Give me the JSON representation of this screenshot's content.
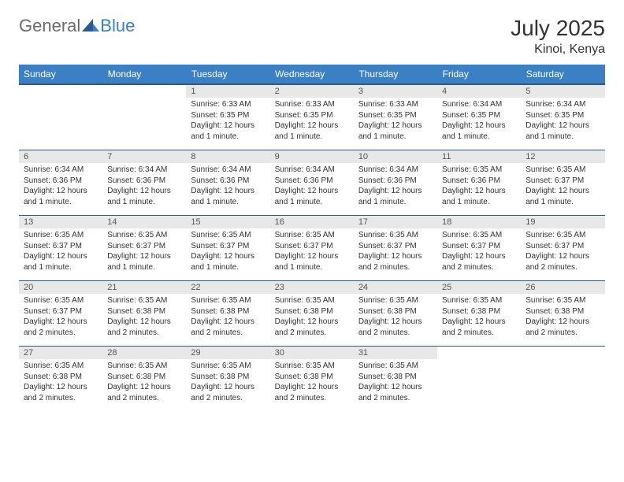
{
  "brand": {
    "part1": "General",
    "part2": "Blue"
  },
  "title": "July 2025",
  "location": "Kinoi, Kenya",
  "colors": {
    "header_bg": "#3b7fc4",
    "header_text": "#ffffff",
    "daynum_bg": "#e8e8e8",
    "border": "#2c5a8a",
    "logo_gray": "#6b6b6b",
    "logo_blue": "#3b7fc4"
  },
  "weekdays": [
    "Sunday",
    "Monday",
    "Tuesday",
    "Wednesday",
    "Thursday",
    "Friday",
    "Saturday"
  ],
  "weeks": [
    [
      {
        "empty": true
      },
      {
        "empty": true
      },
      {
        "num": "1",
        "sunrise": "Sunrise: 6:33 AM",
        "sunset": "Sunset: 6:35 PM",
        "daylight": "Daylight: 12 hours and 1 minute."
      },
      {
        "num": "2",
        "sunrise": "Sunrise: 6:33 AM",
        "sunset": "Sunset: 6:35 PM",
        "daylight": "Daylight: 12 hours and 1 minute."
      },
      {
        "num": "3",
        "sunrise": "Sunrise: 6:33 AM",
        "sunset": "Sunset: 6:35 PM",
        "daylight": "Daylight: 12 hours and 1 minute."
      },
      {
        "num": "4",
        "sunrise": "Sunrise: 6:34 AM",
        "sunset": "Sunset: 6:35 PM",
        "daylight": "Daylight: 12 hours and 1 minute."
      },
      {
        "num": "5",
        "sunrise": "Sunrise: 6:34 AM",
        "sunset": "Sunset: 6:35 PM",
        "daylight": "Daylight: 12 hours and 1 minute."
      }
    ],
    [
      {
        "num": "6",
        "sunrise": "Sunrise: 6:34 AM",
        "sunset": "Sunset: 6:36 PM",
        "daylight": "Daylight: 12 hours and 1 minute."
      },
      {
        "num": "7",
        "sunrise": "Sunrise: 6:34 AM",
        "sunset": "Sunset: 6:36 PM",
        "daylight": "Daylight: 12 hours and 1 minute."
      },
      {
        "num": "8",
        "sunrise": "Sunrise: 6:34 AM",
        "sunset": "Sunset: 6:36 PM",
        "daylight": "Daylight: 12 hours and 1 minute."
      },
      {
        "num": "9",
        "sunrise": "Sunrise: 6:34 AM",
        "sunset": "Sunset: 6:36 PM",
        "daylight": "Daylight: 12 hours and 1 minute."
      },
      {
        "num": "10",
        "sunrise": "Sunrise: 6:34 AM",
        "sunset": "Sunset: 6:36 PM",
        "daylight": "Daylight: 12 hours and 1 minute."
      },
      {
        "num": "11",
        "sunrise": "Sunrise: 6:35 AM",
        "sunset": "Sunset: 6:36 PM",
        "daylight": "Daylight: 12 hours and 1 minute."
      },
      {
        "num": "12",
        "sunrise": "Sunrise: 6:35 AM",
        "sunset": "Sunset: 6:37 PM",
        "daylight": "Daylight: 12 hours and 1 minute."
      }
    ],
    [
      {
        "num": "13",
        "sunrise": "Sunrise: 6:35 AM",
        "sunset": "Sunset: 6:37 PM",
        "daylight": "Daylight: 12 hours and 1 minute."
      },
      {
        "num": "14",
        "sunrise": "Sunrise: 6:35 AM",
        "sunset": "Sunset: 6:37 PM",
        "daylight": "Daylight: 12 hours and 1 minute."
      },
      {
        "num": "15",
        "sunrise": "Sunrise: 6:35 AM",
        "sunset": "Sunset: 6:37 PM",
        "daylight": "Daylight: 12 hours and 1 minute."
      },
      {
        "num": "16",
        "sunrise": "Sunrise: 6:35 AM",
        "sunset": "Sunset: 6:37 PM",
        "daylight": "Daylight: 12 hours and 1 minute."
      },
      {
        "num": "17",
        "sunrise": "Sunrise: 6:35 AM",
        "sunset": "Sunset: 6:37 PM",
        "daylight": "Daylight: 12 hours and 2 minutes."
      },
      {
        "num": "18",
        "sunrise": "Sunrise: 6:35 AM",
        "sunset": "Sunset: 6:37 PM",
        "daylight": "Daylight: 12 hours and 2 minutes."
      },
      {
        "num": "19",
        "sunrise": "Sunrise: 6:35 AM",
        "sunset": "Sunset: 6:37 PM",
        "daylight": "Daylight: 12 hours and 2 minutes."
      }
    ],
    [
      {
        "num": "20",
        "sunrise": "Sunrise: 6:35 AM",
        "sunset": "Sunset: 6:37 PM",
        "daylight": "Daylight: 12 hours and 2 minutes."
      },
      {
        "num": "21",
        "sunrise": "Sunrise: 6:35 AM",
        "sunset": "Sunset: 6:38 PM",
        "daylight": "Daylight: 12 hours and 2 minutes."
      },
      {
        "num": "22",
        "sunrise": "Sunrise: 6:35 AM",
        "sunset": "Sunset: 6:38 PM",
        "daylight": "Daylight: 12 hours and 2 minutes."
      },
      {
        "num": "23",
        "sunrise": "Sunrise: 6:35 AM",
        "sunset": "Sunset: 6:38 PM",
        "daylight": "Daylight: 12 hours and 2 minutes."
      },
      {
        "num": "24",
        "sunrise": "Sunrise: 6:35 AM",
        "sunset": "Sunset: 6:38 PM",
        "daylight": "Daylight: 12 hours and 2 minutes."
      },
      {
        "num": "25",
        "sunrise": "Sunrise: 6:35 AM",
        "sunset": "Sunset: 6:38 PM",
        "daylight": "Daylight: 12 hours and 2 minutes."
      },
      {
        "num": "26",
        "sunrise": "Sunrise: 6:35 AM",
        "sunset": "Sunset: 6:38 PM",
        "daylight": "Daylight: 12 hours and 2 minutes."
      }
    ],
    [
      {
        "num": "27",
        "sunrise": "Sunrise: 6:35 AM",
        "sunset": "Sunset: 6:38 PM",
        "daylight": "Daylight: 12 hours and 2 minutes."
      },
      {
        "num": "28",
        "sunrise": "Sunrise: 6:35 AM",
        "sunset": "Sunset: 6:38 PM",
        "daylight": "Daylight: 12 hours and 2 minutes."
      },
      {
        "num": "29",
        "sunrise": "Sunrise: 6:35 AM",
        "sunset": "Sunset: 6:38 PM",
        "daylight": "Daylight: 12 hours and 2 minutes."
      },
      {
        "num": "30",
        "sunrise": "Sunrise: 6:35 AM",
        "sunset": "Sunset: 6:38 PM",
        "daylight": "Daylight: 12 hours and 2 minutes."
      },
      {
        "num": "31",
        "sunrise": "Sunrise: 6:35 AM",
        "sunset": "Sunset: 6:38 PM",
        "daylight": "Daylight: 12 hours and 2 minutes."
      },
      {
        "empty": true
      },
      {
        "empty": true
      }
    ]
  ]
}
